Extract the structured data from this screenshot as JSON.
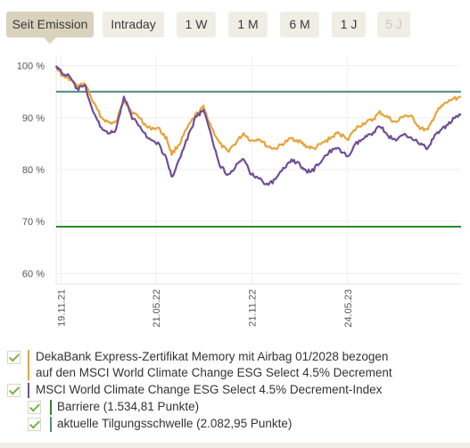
{
  "tabs": [
    {
      "label": "Seit Emission",
      "active": true
    },
    {
      "label": "Intraday"
    },
    {
      "label": "1 W"
    },
    {
      "label": "1 M"
    },
    {
      "label": "6 M"
    },
    {
      "label": "1 J"
    },
    {
      "label": "5 J",
      "disabled": true
    }
  ],
  "chart_data": {
    "type": "line",
    "ylim": [
      58,
      102
    ],
    "y_ticks": [
      {
        "value": 60,
        "label": "60 %"
      },
      {
        "value": 70,
        "label": "70 %"
      },
      {
        "value": 80,
        "label": "80 %"
      },
      {
        "value": 90,
        "label": "90 %"
      },
      {
        "value": 100,
        "label": "100 %"
      }
    ],
    "x_range": [
      "2021-11-10",
      "2023-12-28"
    ],
    "x_ticks": [
      {
        "date": "2021-11-19",
        "label": "19.11.21"
      },
      {
        "date": "2022-05-21",
        "label": "21.05.22"
      },
      {
        "date": "2022-11-21",
        "label": "21.11.22"
      },
      {
        "date": "2023-05-24",
        "label": "24.05.23"
      }
    ],
    "grid": true,
    "series": [
      {
        "name": "DekaBank Express-Zertifikat Memory mit Airbag 01/2028 bezogen auf den MSCI World Climate Change ESG Select 4.5% Decrement",
        "color": "#e8a33b",
        "points": [
          [
            "2021-11-10",
            100
          ],
          [
            "2021-11-22",
            98
          ],
          [
            "2021-12-05",
            97.5
          ],
          [
            "2021-12-20",
            96
          ],
          [
            "2022-01-05",
            96.5
          ],
          [
            "2022-01-20",
            93
          ],
          [
            "2022-02-05",
            90
          ],
          [
            "2022-02-20",
            89
          ],
          [
            "2022-03-05",
            89
          ],
          [
            "2022-03-20",
            93.5
          ],
          [
            "2022-04-05",
            91
          ],
          [
            "2022-04-20",
            90
          ],
          [
            "2022-05-05",
            88
          ],
          [
            "2022-05-25",
            88
          ],
          [
            "2022-06-10",
            86
          ],
          [
            "2022-06-20",
            83
          ],
          [
            "2022-07-05",
            85
          ],
          [
            "2022-07-20",
            88
          ],
          [
            "2022-08-05",
            90.5
          ],
          [
            "2022-08-20",
            92
          ],
          [
            "2022-09-05",
            88
          ],
          [
            "2022-09-20",
            85
          ],
          [
            "2022-10-05",
            83.5
          ],
          [
            "2022-10-20",
            85
          ],
          [
            "2022-11-05",
            87
          ],
          [
            "2022-11-20",
            85.5
          ],
          [
            "2022-12-05",
            86
          ],
          [
            "2022-12-20",
            84.5
          ],
          [
            "2023-01-05",
            84
          ],
          [
            "2023-01-20",
            85
          ],
          [
            "2023-02-05",
            86
          ],
          [
            "2023-02-20",
            85.5
          ],
          [
            "2023-03-05",
            84.5
          ],
          [
            "2023-03-20",
            84
          ],
          [
            "2023-04-05",
            85
          ],
          [
            "2023-04-20",
            86
          ],
          [
            "2023-05-05",
            87
          ],
          [
            "2023-05-25",
            86
          ],
          [
            "2023-06-10",
            88
          ],
          [
            "2023-06-25",
            89
          ],
          [
            "2023-07-10",
            89.5
          ],
          [
            "2023-07-25",
            91
          ],
          [
            "2023-08-10",
            90
          ],
          [
            "2023-08-25",
            89
          ],
          [
            "2023-09-10",
            90.5
          ],
          [
            "2023-09-25",
            90
          ],
          [
            "2023-10-10",
            88
          ],
          [
            "2023-10-25",
            87.5
          ],
          [
            "2023-11-10",
            91
          ],
          [
            "2023-11-25",
            92.5
          ],
          [
            "2023-12-10",
            93.5
          ],
          [
            "2023-12-28",
            94
          ]
        ]
      },
      {
        "name": "MSCI World Climate Change ESG Select 4.5% Decrement-Index",
        "color": "#6f4e97",
        "points": [
          [
            "2021-11-10",
            100
          ],
          [
            "2021-11-22",
            98.5
          ],
          [
            "2021-12-05",
            98
          ],
          [
            "2021-12-20",
            95.5
          ],
          [
            "2022-01-05",
            96
          ],
          [
            "2022-01-20",
            91
          ],
          [
            "2022-02-05",
            88
          ],
          [
            "2022-02-20",
            87
          ],
          [
            "2022-03-05",
            87.5
          ],
          [
            "2022-03-20",
            94
          ],
          [
            "2022-04-05",
            90
          ],
          [
            "2022-04-20",
            88.5
          ],
          [
            "2022-05-05",
            86
          ],
          [
            "2022-05-25",
            85
          ],
          [
            "2022-06-10",
            82
          ],
          [
            "2022-06-20",
            78.5
          ],
          [
            "2022-07-05",
            82
          ],
          [
            "2022-07-20",
            86
          ],
          [
            "2022-08-05",
            90
          ],
          [
            "2022-08-20",
            91.5
          ],
          [
            "2022-09-05",
            86
          ],
          [
            "2022-09-20",
            81
          ],
          [
            "2022-10-05",
            79
          ],
          [
            "2022-10-20",
            80.5
          ],
          [
            "2022-11-05",
            82
          ],
          [
            "2022-11-20",
            79
          ],
          [
            "2022-12-05",
            78.5
          ],
          [
            "2022-12-20",
            77
          ],
          [
            "2023-01-05",
            78
          ],
          [
            "2023-01-20",
            80
          ],
          [
            "2023-02-05",
            82
          ],
          [
            "2023-02-20",
            81
          ],
          [
            "2023-03-05",
            79.5
          ],
          [
            "2023-03-20",
            80
          ],
          [
            "2023-04-05",
            82
          ],
          [
            "2023-04-20",
            83.5
          ],
          [
            "2023-05-05",
            84
          ],
          [
            "2023-05-25",
            82.5
          ],
          [
            "2023-06-10",
            85
          ],
          [
            "2023-06-25",
            86
          ],
          [
            "2023-07-10",
            87
          ],
          [
            "2023-07-25",
            88.5
          ],
          [
            "2023-08-10",
            86.5
          ],
          [
            "2023-08-25",
            85.5
          ],
          [
            "2023-09-10",
            87
          ],
          [
            "2023-09-25",
            86
          ],
          [
            "2023-10-10",
            85
          ],
          [
            "2023-10-25",
            84
          ],
          [
            "2023-11-10",
            87
          ],
          [
            "2023-11-25",
            88
          ],
          [
            "2023-12-10",
            89.5
          ],
          [
            "2023-12-28",
            90.5
          ]
        ]
      }
    ],
    "hlines": [
      {
        "name": "aktuelle Tilgungsschwelle",
        "value": 95,
        "color": "#4e8a7a"
      },
      {
        "name": "Barriere",
        "value": 69,
        "color": "#2a8a2a"
      }
    ]
  },
  "legend": {
    "items": [
      {
        "text": "DekaBank Express-Zertifikat Memory mit Airbag 01/2028 bezogen",
        "text2": "auf den MSCI World Climate Change ESG Select 4.5% Decrement",
        "color": "#e8a33b",
        "checked": true
      },
      {
        "text": "MSCI World Climate Change ESG Select 4.5% Decrement-Index",
        "color": "#6f4e97",
        "checked": true
      },
      {
        "text": "Barriere (1.534,81 Punkte)",
        "color": "#2a8a2a",
        "checked": true
      },
      {
        "text": "aktuelle Tilgungsschwelle (2.082,95 Punkte)",
        "color": "#4e8a7a",
        "checked": true
      }
    ]
  }
}
